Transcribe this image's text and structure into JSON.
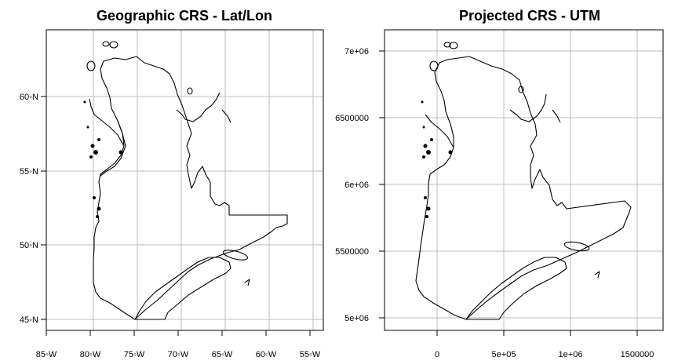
{
  "panels": [
    {
      "title": "Geographic CRS - Lat/Lon",
      "x_ticks": [
        "85◦W",
        "80◦W",
        "75◦W",
        "70◦W",
        "65◦W",
        "60◦W",
        "55◦W"
      ],
      "y_ticks": [
        "60◦N",
        "55◦N",
        "50◦N",
        "45◦N"
      ]
    },
    {
      "title": "Projected CRS - UTM",
      "x_ticks": [
        "0",
        "5e+05",
        "1e+06",
        "1500000"
      ],
      "y_ticks": [
        "7e+06",
        "6500000",
        "6e+06",
        "5500000",
        "5e+06"
      ]
    }
  ]
}
